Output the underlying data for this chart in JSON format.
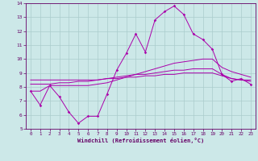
{
  "xlabel": "Windchill (Refroidissement éolien,°C)",
  "xlim": [
    -0.5,
    23.5
  ],
  "ylim": [
    5,
    14
  ],
  "yticks": [
    5,
    6,
    7,
    8,
    9,
    10,
    11,
    12,
    13,
    14
  ],
  "xticks": [
    0,
    1,
    2,
    3,
    4,
    5,
    6,
    7,
    8,
    9,
    10,
    11,
    12,
    13,
    14,
    15,
    16,
    17,
    18,
    19,
    20,
    21,
    22,
    23
  ],
  "bg_color": "#cce8e8",
  "grid_color": "#aacccc",
  "line_color": "#aa00aa",
  "line1_y": [
    7.7,
    6.7,
    8.1,
    7.3,
    6.2,
    5.4,
    5.9,
    5.9,
    7.5,
    9.2,
    10.4,
    11.8,
    10.5,
    12.8,
    13.4,
    13.8,
    13.2,
    11.8,
    11.4,
    10.7,
    8.9,
    8.4,
    8.6,
    8.2
  ],
  "line2_y": [
    7.7,
    7.7,
    8.1,
    8.1,
    8.1,
    8.1,
    8.1,
    8.2,
    8.3,
    8.5,
    8.7,
    8.9,
    9.1,
    9.3,
    9.5,
    9.7,
    9.8,
    9.9,
    10.0,
    10.0,
    9.4,
    9.1,
    8.9,
    8.7
  ],
  "line3_y": [
    8.2,
    8.2,
    8.2,
    8.3,
    8.3,
    8.4,
    8.4,
    8.5,
    8.6,
    8.7,
    8.8,
    8.9,
    8.9,
    9.0,
    9.1,
    9.2,
    9.2,
    9.3,
    9.3,
    9.3,
    8.9,
    8.6,
    8.5,
    8.4
  ],
  "line4_y": [
    8.5,
    8.5,
    8.5,
    8.5,
    8.5,
    8.5,
    8.5,
    8.5,
    8.6,
    8.6,
    8.7,
    8.7,
    8.8,
    8.8,
    8.9,
    8.9,
    9.0,
    9.0,
    9.0,
    9.0,
    8.8,
    8.6,
    8.5,
    8.5
  ]
}
